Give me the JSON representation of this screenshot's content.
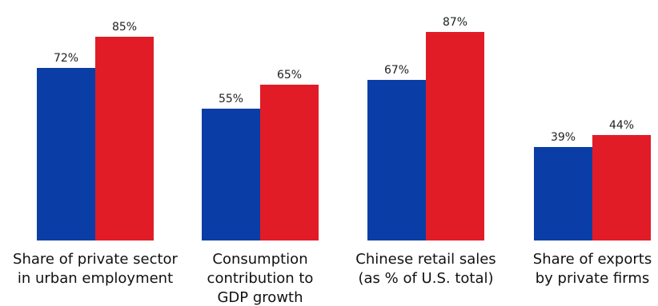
{
  "chart_data": {
    "type": "bar",
    "categories": [
      [
        "Share of private sector",
        "in urban employment"
      ],
      [
        "Consumption",
        "contribution to",
        "GDP growth"
      ],
      [
        "Chinese retail sales",
        "(as % of U.S. total)"
      ],
      [
        "Share of exports",
        "by private firms"
      ]
    ],
    "series": [
      {
        "values": [
          72,
          55,
          67,
          39
        ],
        "labels": [
          "72%",
          "55%",
          "67%",
          "39%"
        ],
        "color": "#0a3ea6"
      },
      {
        "values": [
          85,
          65,
          87,
          44
        ],
        "labels": [
          "85%",
          "65%",
          "87%",
          "44%"
        ],
        "color": "#e21c26"
      }
    ],
    "ylim": [
      0,
      100
    ],
    "grid": false,
    "legend": "none",
    "title": "",
    "xlabel": "",
    "ylabel": ""
  }
}
